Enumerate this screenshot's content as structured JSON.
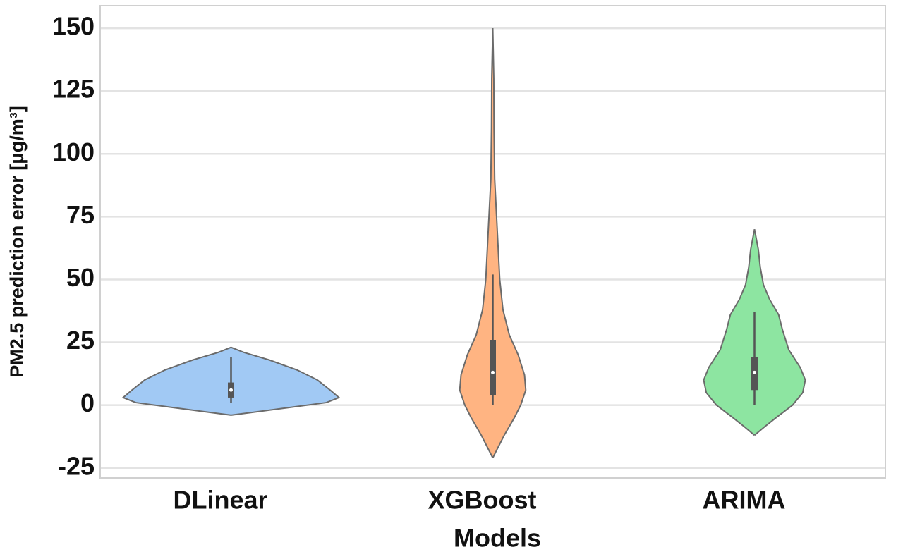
{
  "chart_data": {
    "type": "violin",
    "x_label": "Models",
    "y_label": "PM2.5 prediction error [μg/m³]",
    "categories": [
      "DLinear",
      "XGBoost",
      "ARIMA"
    ],
    "ylim": [
      -29,
      159
    ],
    "yticks": [
      -25,
      0,
      25,
      50,
      75,
      100,
      125,
      150
    ],
    "grid": true,
    "violins": [
      {
        "color": "#a1c9f4",
        "y": [
          -4,
          -3,
          -1,
          1,
          3,
          6,
          10,
          14,
          18,
          21,
          23
        ],
        "density": [
          0,
          0.15,
          0.45,
          0.75,
          0.85,
          0.78,
          0.68,
          0.52,
          0.3,
          0.1,
          0
        ],
        "min": 1,
        "q1": 3,
        "median": 6,
        "q3": 9,
        "max": 19
      },
      {
        "color": "#ffb482",
        "y": [
          -21,
          -18,
          -12,
          -5,
          0,
          6,
          12,
          20,
          28,
          38,
          50,
          65,
          80,
          90,
          110,
          130,
          150
        ],
        "density": [
          0,
          0.03,
          0.09,
          0.17,
          0.22,
          0.26,
          0.25,
          0.2,
          0.13,
          0.08,
          0.055,
          0.04,
          0.025,
          0.015,
          0.01,
          0.008,
          0
        ],
        "min": 0,
        "q1": 4,
        "median": 13,
        "q3": 26,
        "max": 52
      },
      {
        "color": "#8de5a1",
        "y": [
          -12,
          -9,
          -5,
          0,
          5,
          10,
          15,
          22,
          30,
          36,
          42,
          48,
          55,
          62,
          70
        ],
        "density": [
          0,
          0.07,
          0.17,
          0.3,
          0.38,
          0.4,
          0.36,
          0.27,
          0.22,
          0.19,
          0.12,
          0.07,
          0.045,
          0.03,
          0
        ],
        "min": 0,
        "q1": 6,
        "median": 13,
        "q3": 19,
        "max": 37
      }
    ]
  }
}
